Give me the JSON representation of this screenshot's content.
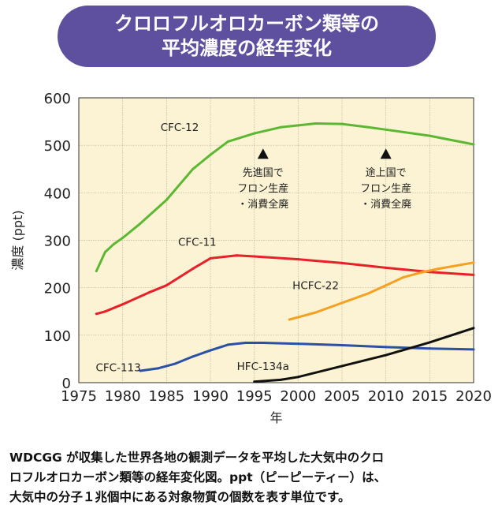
{
  "title": {
    "line1": "クロロフルオロカーボン類等の",
    "line2": "平均濃度の経年変化"
  },
  "caption": {
    "line1": "WDCGG が収集した世界各地の観測データを平均した大気中のクロ",
    "line2": "ロフルオロカーボン類等の経年変化図。ppt（ピーピーティー）は、",
    "line3": "大気中の分子１兆個中にある対象物質の個数を表す単位です。"
  },
  "chart_data": {
    "type": "line",
    "title": "クロロフルオロカーボン類等の平均濃度の経年変化",
    "xlabel": "年",
    "ylabel": "濃度 (ppt)",
    "xlim": [
      1975,
      2020
    ],
    "ylim": [
      0,
      600
    ],
    "xticks": [
      1975,
      1980,
      1985,
      1990,
      1995,
      2000,
      2005,
      2010,
      2015,
      2020
    ],
    "yticks": [
      0,
      100,
      200,
      300,
      400,
      500,
      600
    ],
    "grid": true,
    "background": "#fbf3d3",
    "series": [
      {
        "name": "CFC-12",
        "color": "#5cb832",
        "x": [
          1977,
          1978,
          1979,
          1980,
          1982,
          1985,
          1988,
          1990,
          1992,
          1995,
          1998,
          2000,
          2002,
          2005,
          2008,
          2010,
          2015,
          2020
        ],
        "y": [
          235,
          275,
          292,
          305,
          335,
          385,
          450,
          480,
          508,
          525,
          538,
          542,
          546,
          545,
          538,
          533,
          520,
          502
        ]
      },
      {
        "name": "CFC-11",
        "color": "#e8202a",
        "x": [
          1977,
          1978,
          1980,
          1983,
          1985,
          1988,
          1990,
          1993,
          1995,
          2000,
          2005,
          2010,
          2015,
          2020
        ],
        "y": [
          145,
          150,
          165,
          190,
          205,
          240,
          262,
          268,
          266,
          260,
          252,
          242,
          233,
          227
        ]
      },
      {
        "name": "HCFC-22",
        "color": "#f5a020",
        "x": [
          1999,
          2002,
          2005,
          2008,
          2010,
          2012,
          2014,
          2016,
          2020
        ],
        "y": [
          133,
          148,
          168,
          188,
          205,
          222,
          232,
          240,
          253
        ]
      },
      {
        "name": "CFC-113",
        "color": "#2a50a8",
        "x": [
          1982,
          1984,
          1986,
          1988,
          1990,
          1992,
          1994,
          1996,
          2000,
          2005,
          2010,
          2015,
          2020
        ],
        "y": [
          25,
          30,
          40,
          55,
          68,
          80,
          84,
          84,
          82,
          79,
          75,
          72,
          70
        ]
      },
      {
        "name": "HFC-134a",
        "color": "#111111",
        "x": [
          1995,
          1998,
          2000,
          2005,
          2010,
          2015,
          2020
        ],
        "y": [
          2,
          6,
          12,
          35,
          58,
          85,
          115
        ]
      }
    ],
    "series_labels": [
      {
        "text": "CFC-12",
        "x": 1986.5,
        "y": 530
      },
      {
        "text": "CFC-11",
        "x": 1988.5,
        "y": 288
      },
      {
        "text": "HCFC-22",
        "x": 2002,
        "y": 197
      },
      {
        "text": "CFC-113",
        "x": 1979.5,
        "y": 24
      },
      {
        "text": "HFC-134a",
        "x": 1996,
        "y": 27
      }
    ],
    "annotations": [
      {
        "x": 1996,
        "y": 480,
        "lines": [
          "先進国で",
          "フロン生産",
          "・消費全廃"
        ]
      },
      {
        "x": 2010,
        "y": 480,
        "lines": [
          "途上国で",
          "フロン生産",
          "・消費全廃"
        ]
      }
    ]
  }
}
